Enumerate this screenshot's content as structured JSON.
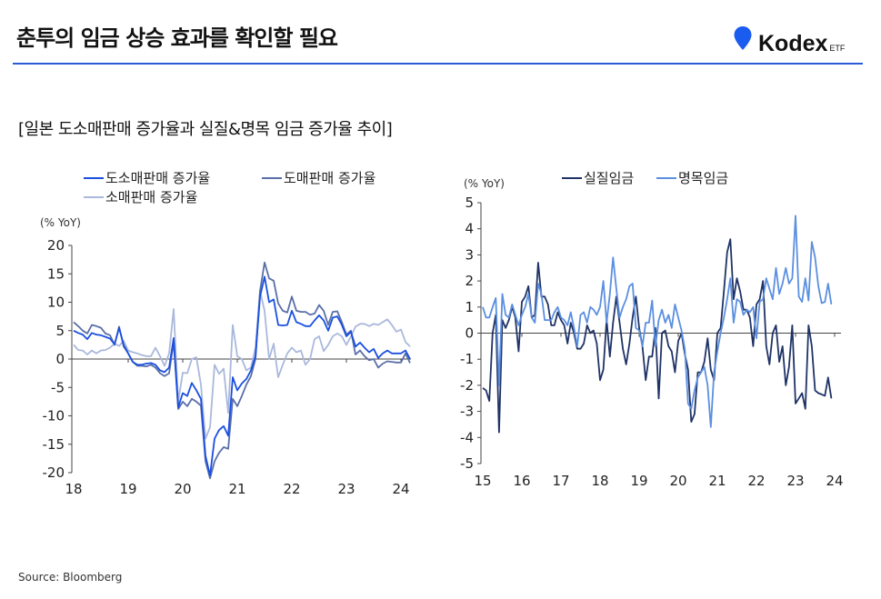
{
  "header": {
    "title": "춘투의 임금 상승 효과를 확인할 필요",
    "logo_brand": "Kodex",
    "logo_suffix": "ETF",
    "accent": "#2a5bd7"
  },
  "subtitle": "[일본 도소매판매 증가율과 실질&명목 임금 증가율 추이]",
  "source": "Source: Bloomberg",
  "chart_data": [
    {
      "type": "line",
      "title": "",
      "ylabel": "(% YoY)",
      "xlabel": "",
      "ylim": [
        -20,
        20
      ],
      "yticks": [
        20,
        15,
        10,
        5,
        0,
        -5,
        -10,
        -15,
        -20
      ],
      "xticks": [
        "18",
        "19",
        "20",
        "21",
        "22",
        "23",
        "24"
      ],
      "x_start": "2018-01",
      "frequency": "monthly",
      "legend": "top",
      "grid": false,
      "series": [
        {
          "name": "도소매판매 증가율",
          "color": "#1a4fe0",
          "values": [
            5,
            4.6,
            4.3,
            3.5,
            4.6,
            4.3,
            4.2,
            3.9,
            3.6,
            2.6,
            5.5,
            2.5,
            1,
            -0.5,
            -1,
            -1,
            -0.8,
            -0.7,
            -1,
            -2,
            -2.3,
            -1.5,
            3.7,
            -8.5,
            -6,
            -6.5,
            -4.2,
            -5.5,
            -7,
            -17,
            -20.5,
            -14,
            -12.5,
            -11.8,
            -13.5,
            -3.2,
            -5.5,
            -4.3,
            -3.5,
            -2,
            0.5,
            11,
            14.5,
            10,
            10.5,
            6,
            5.9,
            6,
            8.5,
            6.5,
            6.2,
            5.8,
            5.8,
            6.8,
            7.7,
            6.8,
            5,
            7.3,
            7.5,
            6,
            4,
            4.8,
            2.2,
            2.9,
            2,
            1.2,
            1.8,
            0.2,
            1,
            1.5,
            1,
            1,
            1,
            1.5,
            0
          ]
        },
        {
          "name": "도매판매 증가율",
          "color": "#5a6fa8",
          "values": [
            6.5,
            5.8,
            5,
            4.5,
            6,
            5.8,
            5.5,
            4.5,
            4.2,
            2.5,
            5.7,
            2.2,
            1,
            -0.5,
            -1.2,
            -1.2,
            -1.3,
            -1,
            -1.5,
            -2.5,
            -3,
            -2.5,
            3,
            -8.8,
            -7.5,
            -8.3,
            -7,
            -7.5,
            -8.2,
            -18,
            -21,
            -18,
            -16.5,
            -15.5,
            -15.8,
            -7,
            -8.3,
            -6.5,
            -4.5,
            -3,
            0,
            12,
            17,
            14.2,
            13.8,
            9.8,
            8.5,
            8.2,
            11,
            8.5,
            8.3,
            8.3,
            7.8,
            8,
            9.5,
            8.5,
            6,
            8.3,
            8.4,
            6.5,
            4.3,
            5,
            0.8,
            1.5,
            0.5,
            -0.2,
            0,
            -1.5,
            -0.8,
            -0.4,
            -0.5,
            -0.6,
            -0.6,
            1,
            -0.7
          ]
        },
        {
          "name": "소매판매 증가율",
          "color": "#aab8dc",
          "values": [
            2.5,
            1.6,
            1.5,
            0.8,
            1.5,
            1,
            1.5,
            1.6,
            2,
            2.7,
            2.3,
            3.2,
            1.5,
            1.2,
            1,
            0.7,
            0.5,
            0.5,
            2,
            0.5,
            -1.2,
            1,
            8.8,
            -7.5,
            -2.4,
            -2.5,
            0,
            0.3,
            -4.5,
            -14,
            -12,
            -1,
            -2.6,
            -1.7,
            -9.5,
            6,
            0.5,
            0,
            -2,
            -1.5,
            2,
            12,
            8.5,
            0,
            2.7,
            -3.2,
            -1,
            1,
            2,
            1.2,
            1.5,
            -1,
            0,
            3.5,
            4,
            1.4,
            2.5,
            4,
            4.5,
            4,
            2.5,
            4,
            5.7,
            6.2,
            6.2,
            5.8,
            6.2,
            6,
            6.5,
            7,
            6,
            4.8,
            5.2,
            3,
            2.2
          ]
        }
      ]
    },
    {
      "type": "line",
      "title": "",
      "ylabel": "(% YoY)",
      "xlabel": "",
      "ylim": [
        -5,
        5
      ],
      "yticks": [
        5,
        4,
        3,
        2,
        1,
        0,
        -1,
        -2,
        -3,
        -4,
        -5
      ],
      "xticks": [
        "15",
        "16",
        "17",
        "18",
        "19",
        "20",
        "21",
        "22",
        "23",
        "24"
      ],
      "x_start": "2015-01",
      "frequency": "monthly",
      "legend": "top",
      "grid": false,
      "series": [
        {
          "name": "실질임금",
          "color": "#1f3366",
          "values": [
            -2.1,
            -2.2,
            -2.6,
            0,
            0.7,
            -3.8,
            0.5,
            0.2,
            0.5,
            1.0,
            0.6,
            -0.7,
            1.2,
            1.4,
            1.8,
            0.6,
            0.7,
            2.7,
            1.4,
            1.4,
            1.1,
            0.3,
            0.3,
            0.8,
            0.5,
            0.3,
            -0.4,
            0.4,
            0,
            -0.6,
            -0.6,
            -0.4,
            0.3,
            0,
            0.1,
            -0.4,
            -1.8,
            -1.4,
            0.5,
            -0.9,
            0.4,
            1.4,
            0.4,
            -0.6,
            -1.2,
            -0.4,
            0.6,
            1.4,
            0.2,
            -0.5,
            -1.8,
            -0.9,
            -0.9,
            0.2,
            -2.5,
            0,
            0.1,
            -0.5,
            -0.7,
            -1.5,
            -0.3,
            0,
            -0.8,
            -1.4,
            -3.4,
            -3.1,
            -1.5,
            -1.5,
            -1.1,
            -0.2,
            -1.4,
            -1.8,
            0,
            0.2,
            1.6,
            3.1,
            3.6,
            1.3,
            2.1,
            1.6,
            0.9,
            0.9,
            0.6,
            -0.5,
            1.1,
            1.3,
            2.0,
            -0.5,
            -1.2,
            0,
            0.3,
            -1.1,
            -0.5,
            -2,
            -1.3,
            0.3,
            -2.7,
            -2.5,
            -2.3,
            -2.9,
            0.3,
            -0.5,
            -2.2,
            -2.3,
            -2.35,
            -2.4,
            -1.7,
            -2.5
          ]
        },
        {
          "name": "명목임금",
          "color": "#5b8fe0",
          "values": [
            1,
            0.6,
            0.6,
            1.0,
            1.35,
            -2,
            1.5,
            0.7,
            0.6,
            1.1,
            0.7,
            0.3,
            0.7,
            1,
            1.5,
            0.6,
            0.4,
            1.9,
            1.5,
            0.5,
            0.5,
            0.5,
            0.8,
            1.0,
            0.6,
            0.5,
            0.3,
            0.8,
            0.2,
            -0.5,
            0.7,
            0.8,
            0.4,
            1.0,
            0.9,
            0.7,
            1.0,
            2.0,
            0.4,
            1.5,
            2.9,
            1.7,
            0.6,
            1.0,
            1.3,
            1.8,
            1.9,
            0.2,
            0.1,
            -0.5,
            0.4,
            0.4,
            1.25,
            -0.5,
            0.5,
            0.9,
            0.4,
            0.7,
            0.2,
            1.1,
            0.6,
            0.1,
            -0.6,
            -2.7,
            -2.9,
            -2.2,
            -1.7,
            -1.5,
            -1.3,
            -2.0,
            -3.6,
            -1.5,
            -0.7,
            0,
            0.6,
            1.3,
            2.1,
            0.4,
            1.3,
            1.2,
            0.7,
            0.9,
            0.8,
            1.0,
            -0.2,
            1.2,
            1.3,
            2.1,
            1.7,
            1.3,
            2.5,
            1.5,
            1.9,
            2.5,
            1.9,
            2.1,
            4.5,
            1.4,
            1.2,
            2.1,
            1.25,
            3.5,
            2.9,
            1.8,
            1.15,
            1.2,
            1.9,
            1.1
          ]
        }
      ]
    }
  ]
}
